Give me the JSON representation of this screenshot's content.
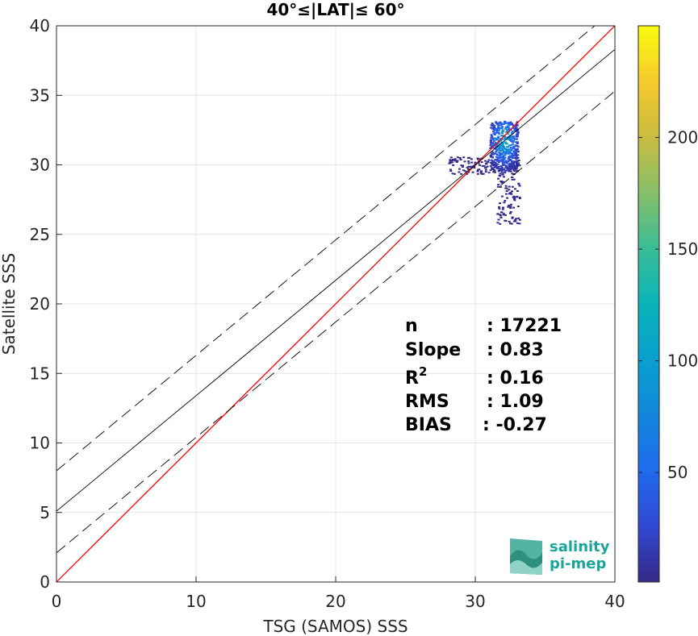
{
  "chart_data": {
    "type": "scatter",
    "title": "40°≤|LAT|≤ 60°",
    "xlabel": "TSG (SAMOS) SSS",
    "ylabel": "Satellite SSS",
    "xlim": [
      0,
      40
    ],
    "ylim": [
      0,
      40
    ],
    "x_ticks": [
      "0",
      "10",
      "20",
      "30",
      "40"
    ],
    "y_ticks": [
      "0",
      "5",
      "10",
      "15",
      "20",
      "25",
      "30",
      "35",
      "40"
    ],
    "grid": true,
    "colorbar": {
      "range": [
        1,
        250
      ],
      "colormap": "parula",
      "ticks": [
        "50",
        "100",
        "150",
        "200"
      ],
      "tick_values": [
        50,
        100,
        150,
        200
      ]
    },
    "lines": [
      {
        "kind": "identity",
        "color": "#ff0000",
        "style": "solid",
        "intercept": 0,
        "slope": 1
      },
      {
        "kind": "regression",
        "color": "#000000",
        "style": "solid",
        "intercept": 5.1,
        "slope": 0.83
      },
      {
        "kind": "regression-upper",
        "color": "#000000",
        "style": "dashed",
        "intercept": 8.0,
        "slope": 0.83
      },
      {
        "kind": "regression-lower",
        "color": "#000000",
        "style": "dashed",
        "intercept": 2.1,
        "slope": 0.83
      }
    ],
    "density_cluster": {
      "center_x": 32.0,
      "center_y": 31.2,
      "x_range": [
        28.0,
        33.2
      ],
      "y_range": [
        25.8,
        35.6
      ],
      "peak_density": 120
    },
    "stats": [
      {
        "label": "n",
        "value": ": 17221"
      },
      {
        "label": "Slope",
        "value": ": 0.83"
      },
      {
        "label": "R",
        "value": ": 0.16",
        "superscript": "2"
      },
      {
        "label": "RMS",
        "value": ": 1.09"
      },
      {
        "label": "BIAS",
        "value": ": -0.27"
      }
    ]
  },
  "logo": {
    "line1": "salinity",
    "line2": "pi-mep",
    "color": "#1aa59a"
  }
}
